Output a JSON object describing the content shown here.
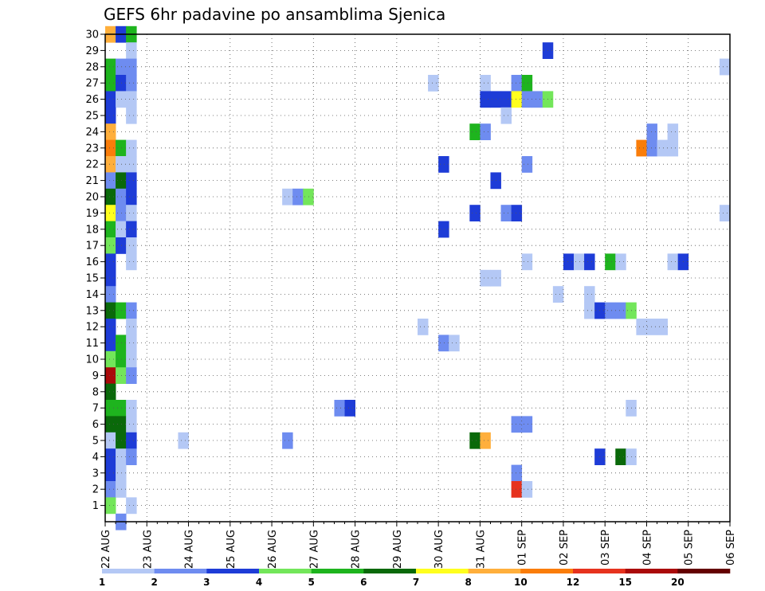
{
  "chart_data": {
    "type": "heatmap",
    "title": "GEFS 6hr padavine po ansamblima Sjenica",
    "xlabel": "",
    "ylabel": "",
    "x_tick_labels": [
      "22 AUG",
      "23 AUG",
      "24 AUG",
      "25 AUG",
      "26 AUG",
      "27 AUG",
      "28 AUG",
      "29 AUG",
      "30 AUG",
      "31 AUG",
      "01 SEP",
      "02 SEP",
      "03 SEP",
      "04 SEP",
      "05 SEP",
      "06 SEP"
    ],
    "y_tick_labels": [
      "1",
      "2",
      "3",
      "4",
      "5",
      "6",
      "7",
      "8",
      "9",
      "10",
      "11",
      "12",
      "13",
      "14",
      "15",
      "16",
      "17",
      "18",
      "19",
      "20",
      "21",
      "22",
      "23",
      "24",
      "25",
      "26",
      "27",
      "28",
      "29",
      "30"
    ],
    "grid": true,
    "legend_placement": "bottom",
    "colorbar": {
      "tick_labels": [
        "1",
        "2",
        "3",
        "4",
        "5",
        "6",
        "7",
        "8",
        "10",
        "12",
        "15",
        "20"
      ],
      "colors": [
        "#b4c8f5",
        "#6e8cf0",
        "#1e3cd7",
        "#73e65a",
        "#1eb41e",
        "#0a690a",
        "#ffff1e",
        "#ffaf3c",
        "#fa7d0a",
        "#e6321e",
        "#aa0a0a",
        "#640000"
      ]
    },
    "cells": [
      {
        "day": "22 AUG",
        "hour": 0,
        "member": 30,
        "value": 8
      },
      {
        "day": "22 AUG",
        "hour": 6,
        "member": 30,
        "value": 3
      },
      {
        "day": "22 AUG",
        "hour": 12,
        "member": 30,
        "value": 5
      },
      {
        "day": "22 AUG",
        "hour": 12,
        "member": 29,
        "value": 1
      },
      {
        "day": "22 AUG",
        "hour": 0,
        "member": 28,
        "value": 5
      },
      {
        "day": "22 AUG",
        "hour": 6,
        "member": 28,
        "value": 2
      },
      {
        "day": "22 AUG",
        "hour": 12,
        "member": 28,
        "value": 2
      },
      {
        "day": "22 AUG",
        "hour": 0,
        "member": 27,
        "value": 5
      },
      {
        "day": "22 AUG",
        "hour": 6,
        "member": 27,
        "value": 3
      },
      {
        "day": "22 AUG",
        "hour": 12,
        "member": 27,
        "value": 2
      },
      {
        "day": "22 AUG",
        "hour": 0,
        "member": 26,
        "value": 3
      },
      {
        "day": "22 AUG",
        "hour": 6,
        "member": 26,
        "value": 1
      },
      {
        "day": "22 AUG",
        "hour": 12,
        "member": 26,
        "value": 1
      },
      {
        "day": "22 AUG",
        "hour": 0,
        "member": 25,
        "value": 3
      },
      {
        "day": "22 AUG",
        "hour": 12,
        "member": 25,
        "value": 1
      },
      {
        "day": "22 AUG",
        "hour": 0,
        "member": 24,
        "value": 8
      },
      {
        "day": "22 AUG",
        "hour": 0,
        "member": 23,
        "value": 10
      },
      {
        "day": "22 AUG",
        "hour": 6,
        "member": 23,
        "value": 5
      },
      {
        "day": "22 AUG",
        "hour": 12,
        "member": 23,
        "value": 1
      },
      {
        "day": "22 AUG",
        "hour": 0,
        "member": 22,
        "value": 8
      },
      {
        "day": "22 AUG",
        "hour": 6,
        "member": 22,
        "value": 1
      },
      {
        "day": "22 AUG",
        "hour": 12,
        "member": 22,
        "value": 1
      },
      {
        "day": "22 AUG",
        "hour": 0,
        "member": 21,
        "value": 2
      },
      {
        "day": "22 AUG",
        "hour": 6,
        "member": 21,
        "value": 6
      },
      {
        "day": "22 AUG",
        "hour": 12,
        "member": 21,
        "value": 3
      },
      {
        "day": "22 AUG",
        "hour": 0,
        "member": 20,
        "value": 6
      },
      {
        "day": "22 AUG",
        "hour": 6,
        "member": 20,
        "value": 2
      },
      {
        "day": "22 AUG",
        "hour": 12,
        "member": 20,
        "value": 3
      },
      {
        "day": "22 AUG",
        "hour": 0,
        "member": 19,
        "value": 7
      },
      {
        "day": "22 AUG",
        "hour": 6,
        "member": 19,
        "value": 2
      },
      {
        "day": "22 AUG",
        "hour": 12,
        "member": 19,
        "value": 1
      },
      {
        "day": "22 AUG",
        "hour": 0,
        "member": 18,
        "value": 5
      },
      {
        "day": "22 AUG",
        "hour": 6,
        "member": 18,
        "value": 1
      },
      {
        "day": "22 AUG",
        "hour": 12,
        "member": 18,
        "value": 3
      },
      {
        "day": "22 AUG",
        "hour": 0,
        "member": 17,
        "value": 4
      },
      {
        "day": "22 AUG",
        "hour": 6,
        "member": 17,
        "value": 3
      },
      {
        "day": "22 AUG",
        "hour": 12,
        "member": 17,
        "value": 1
      },
      {
        "day": "22 AUG",
        "hour": 0,
        "member": 16,
        "value": 3
      },
      {
        "day": "22 AUG",
        "hour": 12,
        "member": 16,
        "value": 1
      },
      {
        "day": "22 AUG",
        "hour": 0,
        "member": 15,
        "value": 3
      },
      {
        "day": "22 AUG",
        "hour": 0,
        "member": 14,
        "value": 2
      },
      {
        "day": "22 AUG",
        "hour": 0,
        "member": 13,
        "value": 6
      },
      {
        "day": "22 AUG",
        "hour": 6,
        "member": 13,
        "value": 5
      },
      {
        "day": "22 AUG",
        "hour": 12,
        "member": 13,
        "value": 2
      },
      {
        "day": "22 AUG",
        "hour": 0,
        "member": 12,
        "value": 3
      },
      {
        "day": "22 AUG",
        "hour": 12,
        "member": 12,
        "value": 1
      },
      {
        "day": "22 AUG",
        "hour": 0,
        "member": 11,
        "value": 3
      },
      {
        "day": "22 AUG",
        "hour": 6,
        "member": 11,
        "value": 5
      },
      {
        "day": "22 AUG",
        "hour": 12,
        "member": 11,
        "value": 1
      },
      {
        "day": "22 AUG",
        "hour": 0,
        "member": 10,
        "value": 4
      },
      {
        "day": "22 AUG",
        "hour": 6,
        "member": 10,
        "value": 5
      },
      {
        "day": "22 AUG",
        "hour": 12,
        "member": 10,
        "value": 1
      },
      {
        "day": "22 AUG",
        "hour": 0,
        "member": 9,
        "value": 15
      },
      {
        "day": "22 AUG",
        "hour": 6,
        "member": 9,
        "value": 4
      },
      {
        "day": "22 AUG",
        "hour": 12,
        "member": 9,
        "value": 2
      },
      {
        "day": "22 AUG",
        "hour": 0,
        "member": 8,
        "value": 6
      },
      {
        "day": "22 AUG",
        "hour": 0,
        "member": 7,
        "value": 5
      },
      {
        "day": "22 AUG",
        "hour": 6,
        "member": 7,
        "value": 5
      },
      {
        "day": "22 AUG",
        "hour": 12,
        "member": 7,
        "value": 1
      },
      {
        "day": "22 AUG",
        "hour": 0,
        "member": 6,
        "value": 6
      },
      {
        "day": "22 AUG",
        "hour": 6,
        "member": 6,
        "value": 6
      },
      {
        "day": "22 AUG",
        "hour": 12,
        "member": 6,
        "value": 1
      },
      {
        "day": "22 AUG",
        "hour": 0,
        "member": 5,
        "value": 1
      },
      {
        "day": "22 AUG",
        "hour": 6,
        "member": 5,
        "value": 6
      },
      {
        "day": "22 AUG",
        "hour": 12,
        "member": 5,
        "value": 3
      },
      {
        "day": "22 AUG",
        "hour": 0,
        "member": 4,
        "value": 3
      },
      {
        "day": "22 AUG",
        "hour": 6,
        "member": 4,
        "value": 1
      },
      {
        "day": "22 AUG",
        "hour": 12,
        "member": 4,
        "value": 2
      },
      {
        "day": "22 AUG",
        "hour": 0,
        "member": 3,
        "value": 3
      },
      {
        "day": "22 AUG",
        "hour": 6,
        "member": 3,
        "value": 1
      },
      {
        "day": "22 AUG",
        "hour": 0,
        "member": 2,
        "value": 2
      },
      {
        "day": "22 AUG",
        "hour": 6,
        "member": 2,
        "value": 1
      },
      {
        "day": "22 AUG",
        "hour": 0,
        "member": 1,
        "value": 4
      },
      {
        "day": "22 AUG",
        "hour": 12,
        "member": 1,
        "value": 1
      },
      {
        "day": "22 AUG",
        "hour": 6,
        "member": 0,
        "value": 2
      },
      {
        "day": "23 AUG",
        "hour": 18,
        "member": 5,
        "value": 1
      },
      {
        "day": "26 AUG",
        "hour": 6,
        "member": 20,
        "value": 1
      },
      {
        "day": "26 AUG",
        "hour": 12,
        "member": 20,
        "value": 2
      },
      {
        "day": "26 AUG",
        "hour": 18,
        "member": 20,
        "value": 4
      },
      {
        "day": "26 AUG",
        "hour": 6,
        "member": 5,
        "value": 2
      },
      {
        "day": "27 AUG",
        "hour": 12,
        "member": 7,
        "value": 2
      },
      {
        "day": "27 AUG",
        "hour": 18,
        "member": 7,
        "value": 3
      },
      {
        "day": "29 AUG",
        "hour": 18,
        "member": 27,
        "value": 1
      },
      {
        "day": "29 AUG",
        "hour": 12,
        "member": 12,
        "value": 1
      },
      {
        "day": "30 AUG",
        "hour": 0,
        "member": 22,
        "value": 3
      },
      {
        "day": "30 AUG",
        "hour": 0,
        "member": 18,
        "value": 3
      },
      {
        "day": "30 AUG",
        "hour": 0,
        "member": 11,
        "value": 2
      },
      {
        "day": "30 AUG",
        "hour": 6,
        "member": 11,
        "value": 1
      },
      {
        "day": "30 AUG",
        "hour": 18,
        "member": 24,
        "value": 5
      },
      {
        "day": "30 AUG",
        "hour": 18,
        "member": 19,
        "value": 3
      },
      {
        "day": "30 AUG",
        "hour": 18,
        "member": 5,
        "value": 6
      },
      {
        "day": "31 AUG",
        "hour": 0,
        "member": 24,
        "value": 2
      },
      {
        "day": "31 AUG",
        "hour": 0,
        "member": 15,
        "value": 1
      },
      {
        "day": "31 AUG",
        "hour": 6,
        "member": 15,
        "value": 1
      },
      {
        "day": "31 AUG",
        "hour": 0,
        "member": 5,
        "value": 8
      },
      {
        "day": "31 AUG",
        "hour": 0,
        "member": 27,
        "value": 1
      },
      {
        "day": "31 AUG",
        "hour": 0,
        "member": 26,
        "value": 3
      },
      {
        "day": "31 AUG",
        "hour": 6,
        "member": 26,
        "value": 3
      },
      {
        "day": "31 AUG",
        "hour": 12,
        "member": 26,
        "value": 3
      },
      {
        "day": "31 AUG",
        "hour": 6,
        "member": 21,
        "value": 3
      },
      {
        "day": "31 AUG",
        "hour": 12,
        "member": 25,
        "value": 1
      },
      {
        "day": "31 AUG",
        "hour": 12,
        "member": 19,
        "value": 2
      },
      {
        "day": "31 AUG",
        "hour": 18,
        "member": 27,
        "value": 2
      },
      {
        "day": "31 AUG",
        "hour": 18,
        "member": 26,
        "value": 7
      },
      {
        "day": "31 AUG",
        "hour": 18,
        "member": 19,
        "value": 3
      },
      {
        "day": "31 AUG",
        "hour": 18,
        "member": 6,
        "value": 2
      },
      {
        "day": "31 AUG",
        "hour": 18,
        "member": 3,
        "value": 2
      },
      {
        "day": "31 AUG",
        "hour": 18,
        "member": 2,
        "value": 12
      },
      {
        "day": "01 SEP",
        "hour": 0,
        "member": 27,
        "value": 5
      },
      {
        "day": "01 SEP",
        "hour": 0,
        "member": 26,
        "value": 2
      },
      {
        "day": "01 SEP",
        "hour": 6,
        "member": 26,
        "value": 2
      },
      {
        "day": "01 SEP",
        "hour": 12,
        "member": 26,
        "value": 4
      },
      {
        "day": "01 SEP",
        "hour": 0,
        "member": 22,
        "value": 2
      },
      {
        "day": "01 SEP",
        "hour": 0,
        "member": 16,
        "value": 1
      },
      {
        "day": "01 SEP",
        "hour": 0,
        "member": 6,
        "value": 2
      },
      {
        "day": "01 SEP",
        "hour": 0,
        "member": 2,
        "value": 1
      },
      {
        "day": "01 SEP",
        "hour": 12,
        "member": 29,
        "value": 3
      },
      {
        "day": "01 SEP",
        "hour": 18,
        "member": 14,
        "value": 1
      },
      {
        "day": "02 SEP",
        "hour": 0,
        "member": 16,
        "value": 3
      },
      {
        "day": "02 SEP",
        "hour": 6,
        "member": 16,
        "value": 1
      },
      {
        "day": "02 SEP",
        "hour": 12,
        "member": 16,
        "value": 3
      },
      {
        "day": "02 SEP",
        "hour": 12,
        "member": 14,
        "value": 1
      },
      {
        "day": "02 SEP",
        "hour": 12,
        "member": 13,
        "value": 1
      },
      {
        "day": "02 SEP",
        "hour": 18,
        "member": 13,
        "value": 3
      },
      {
        "day": "03 SEP",
        "hour": 0,
        "member": 13,
        "value": 2
      },
      {
        "day": "03 SEP",
        "hour": 6,
        "member": 13,
        "value": 2
      },
      {
        "day": "03 SEP",
        "hour": 12,
        "member": 13,
        "value": 4
      },
      {
        "day": "03 SEP",
        "hour": 0,
        "member": 16,
        "value": 5
      },
      {
        "day": "03 SEP",
        "hour": 6,
        "member": 16,
        "value": 1
      },
      {
        "day": "02 SEP",
        "hour": 18,
        "member": 4,
        "value": 3
      },
      {
        "day": "03 SEP",
        "hour": 6,
        "member": 4,
        "value": 6
      },
      {
        "day": "03 SEP",
        "hour": 12,
        "member": 4,
        "value": 1
      },
      {
        "day": "03 SEP",
        "hour": 12,
        "member": 7,
        "value": 1
      },
      {
        "day": "03 SEP",
        "hour": 18,
        "member": 23,
        "value": 10
      },
      {
        "day": "04 SEP",
        "hour": 0,
        "member": 24,
        "value": 2
      },
      {
        "day": "04 SEP",
        "hour": 0,
        "member": 23,
        "value": 2
      },
      {
        "day": "04 SEP",
        "hour": 6,
        "member": 23,
        "value": 1
      },
      {
        "day": "04 SEP",
        "hour": 12,
        "member": 23,
        "value": 1
      },
      {
        "day": "04 SEP",
        "hour": 12,
        "member": 24,
        "value": 1
      },
      {
        "day": "03 SEP",
        "hour": 18,
        "member": 12,
        "value": 1
      },
      {
        "day": "04 SEP",
        "hour": 0,
        "member": 12,
        "value": 1
      },
      {
        "day": "04 SEP",
        "hour": 6,
        "member": 12,
        "value": 1
      },
      {
        "day": "04 SEP",
        "hour": 12,
        "member": 16,
        "value": 1
      },
      {
        "day": "04 SEP",
        "hour": 18,
        "member": 16,
        "value": 3
      },
      {
        "day": "05 SEP",
        "hour": 18,
        "member": 28,
        "value": 1
      },
      {
        "day": "05 SEP",
        "hour": 18,
        "member": 19,
        "value": 1
      }
    ]
  }
}
